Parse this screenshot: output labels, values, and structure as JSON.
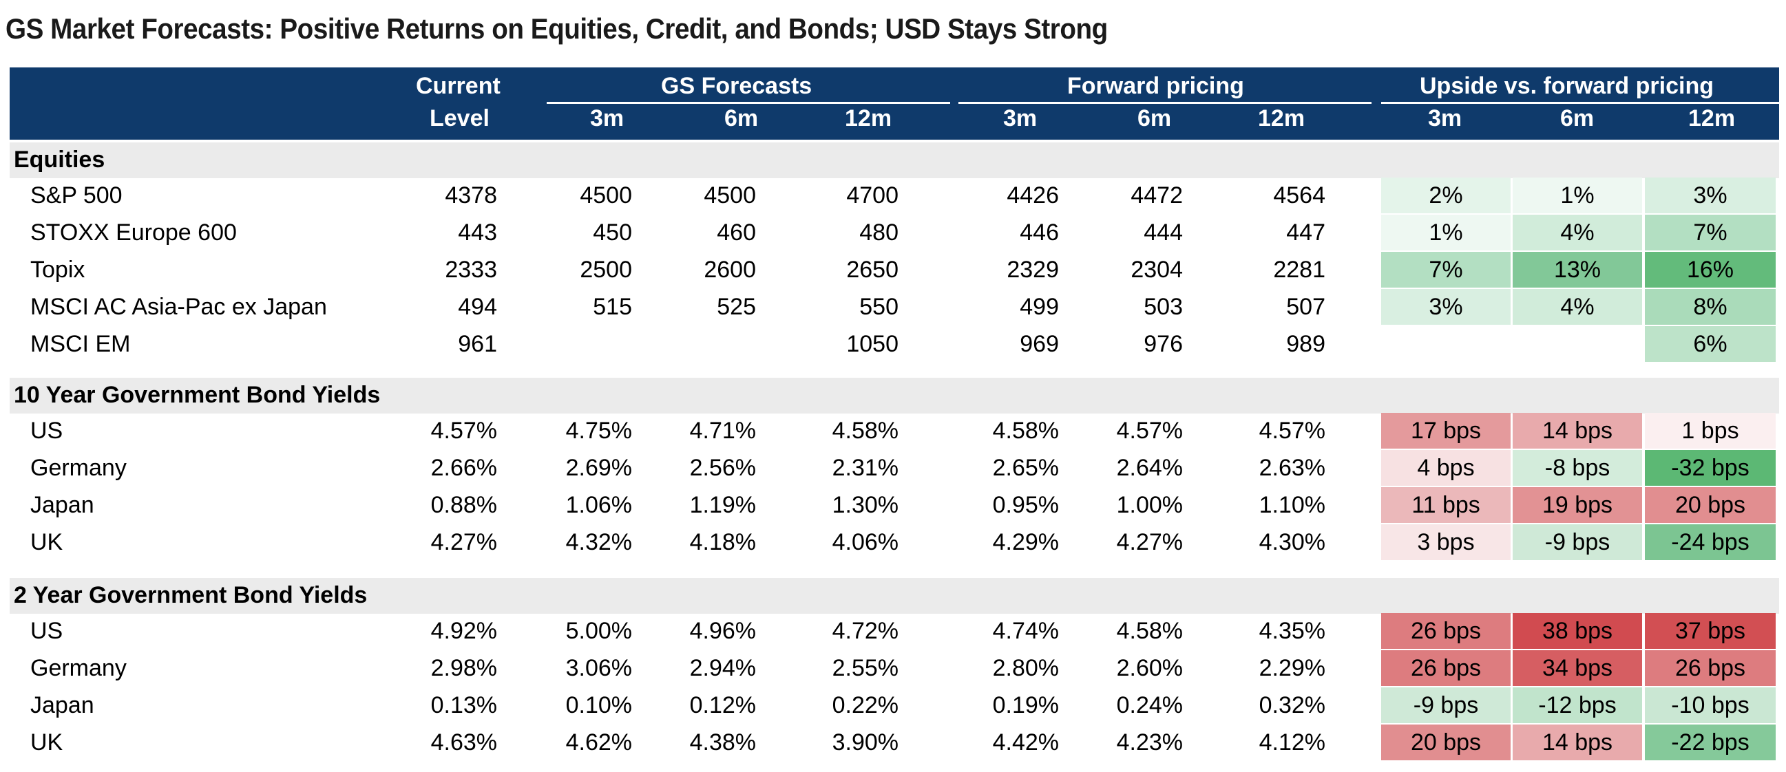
{
  "title": "GS Market Forecasts: Positive Returns on Equities, Credit, and Bonds; USD Stays Strong",
  "header": {
    "current_line1": "Current",
    "current_line2": "Level",
    "gs_forecasts": "GS Forecasts",
    "forward_pricing": "Forward pricing",
    "upside": "Upside vs. forward pricing",
    "h3m": "3m",
    "h6m": "6m",
    "h12m": "12m"
  },
  "sections": [
    {
      "name": "Equities",
      "rows": [
        {
          "label": "S&P 500",
          "current": "4378",
          "gs": [
            "4500",
            "4500",
            "4700"
          ],
          "fwd": [
            "4426",
            "4472",
            "4564"
          ],
          "upside": [
            "2%",
            "1%",
            "3%"
          ],
          "colors": [
            "#e4f4ea",
            "#eef8f2",
            "#d9efe1"
          ]
        },
        {
          "label": "STOXX Europe 600",
          "current": "443",
          "gs": [
            "450",
            "460",
            "480"
          ],
          "fwd": [
            "446",
            "444",
            "447"
          ],
          "upside": [
            "1%",
            "4%",
            "7%"
          ],
          "colors": [
            "#eef8f2",
            "#d1ecda",
            "#b3dfc2"
          ]
        },
        {
          "label": "Topix",
          "current": "2333",
          "gs": [
            "2500",
            "2600",
            "2650"
          ],
          "fwd": [
            "2329",
            "2304",
            "2281"
          ],
          "upside": [
            "7%",
            "13%",
            "16%"
          ],
          "colors": [
            "#b3dfc2",
            "#82c898",
            "#63bb7b"
          ]
        },
        {
          "label": "MSCI AC Asia-Pac ex Japan",
          "current": "494",
          "gs": [
            "515",
            "525",
            "550"
          ],
          "fwd": [
            "499",
            "503",
            "507"
          ],
          "upside": [
            "3%",
            "4%",
            "8%"
          ],
          "colors": [
            "#d9efe1",
            "#d1ecda",
            "#aadbba"
          ]
        },
        {
          "label": "MSCI EM",
          "current": "961",
          "gs": [
            "",
            "",
            "1050"
          ],
          "fwd": [
            "969",
            "976",
            "989"
          ],
          "upside": [
            "",
            "",
            "6%"
          ],
          "colors": [
            "#ffffff",
            "#ffffff",
            "#bde3c9"
          ]
        }
      ]
    },
    {
      "name": "10 Year Government Bond Yields",
      "rows": [
        {
          "label": "US",
          "current": "4.57%",
          "gs": [
            "4.75%",
            "4.71%",
            "4.58%"
          ],
          "fwd": [
            "4.58%",
            "4.57%",
            "4.57%"
          ],
          "upside": [
            "17 bps",
            "14 bps",
            "1 bps"
          ],
          "colors": [
            "#e49a9c",
            "#e8aaac",
            "#fbeff0"
          ]
        },
        {
          "label": "Germany",
          "current": "2.66%",
          "gs": [
            "2.69%",
            "2.56%",
            "2.31%"
          ],
          "fwd": [
            "2.65%",
            "2.64%",
            "2.63%"
          ],
          "upside": [
            "4 bps",
            "-8 bps",
            "-32 bps"
          ],
          "colors": [
            "#f7e1e2",
            "#d3ecdb",
            "#5cb874"
          ]
        },
        {
          "label": "Japan",
          "current": "0.88%",
          "gs": [
            "1.06%",
            "1.19%",
            "1.30%"
          ],
          "fwd": [
            "0.95%",
            "1.00%",
            "1.10%"
          ],
          "upside": [
            "11 bps",
            "19 bps",
            "20 bps"
          ],
          "colors": [
            "#ebb8ba",
            "#e29294",
            "#e18e90"
          ]
        },
        {
          "label": "UK",
          "current": "4.27%",
          "gs": [
            "4.32%",
            "4.18%",
            "4.06%"
          ],
          "fwd": [
            "4.29%",
            "4.27%",
            "4.30%"
          ],
          "upside": [
            "3 bps",
            "-9 bps",
            "-24 bps"
          ],
          "colors": [
            "#f8e6e7",
            "#cfe9d7",
            "#7cc592"
          ]
        }
      ]
    },
    {
      "name": "2 Year Government Bond Yields",
      "rows": [
        {
          "label": "US",
          "current": "4.92%",
          "gs": [
            "5.00%",
            "4.96%",
            "4.72%"
          ],
          "fwd": [
            "4.74%",
            "4.58%",
            "4.35%"
          ],
          "upside": [
            "26 bps",
            "38 bps",
            "37 bps"
          ],
          "colors": [
            "#dd7c7f",
            "#d14b50",
            "#d24f53"
          ]
        },
        {
          "label": "Germany",
          "current": "2.98%",
          "gs": [
            "3.06%",
            "2.94%",
            "2.55%"
          ],
          "fwd": [
            "2.80%",
            "2.60%",
            "2.29%"
          ],
          "upside": [
            "26 bps",
            "34 bps",
            "26 bps"
          ],
          "colors": [
            "#dd7c7f",
            "#d65e62",
            "#dd7c7f"
          ]
        },
        {
          "label": "Japan",
          "current": "0.13%",
          "gs": [
            "0.10%",
            "0.12%",
            "0.22%"
          ],
          "fwd": [
            "0.19%",
            "0.24%",
            "0.32%"
          ],
          "upside": [
            "-9 bps",
            "-12 bps",
            "-10 bps"
          ],
          "colors": [
            "#cfe9d7",
            "#c1e4cc",
            "#cae7d3"
          ]
        },
        {
          "label": "UK",
          "current": "4.63%",
          "gs": [
            "4.62%",
            "4.38%",
            "3.90%"
          ],
          "fwd": [
            "4.42%",
            "4.23%",
            "4.12%"
          ],
          "upside": [
            "20 bps",
            "14 bps",
            "-22 bps"
          ],
          "colors": [
            "#e18e90",
            "#e8aaac",
            "#85c99a"
          ]
        }
      ]
    }
  ]
}
